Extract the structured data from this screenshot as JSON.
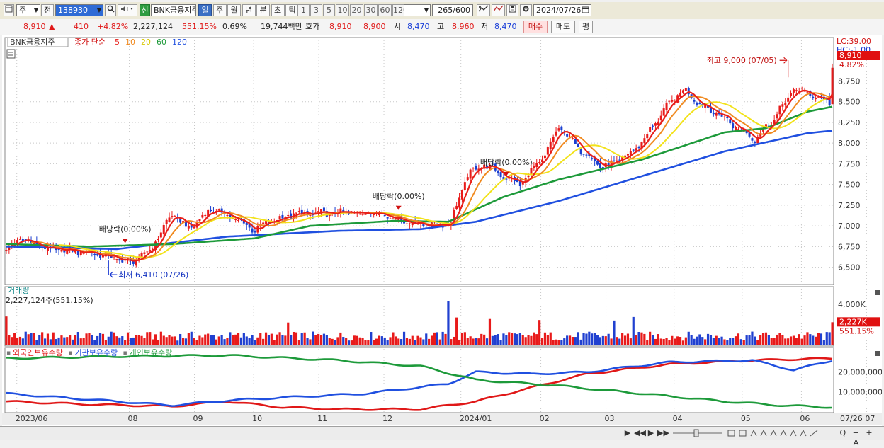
{
  "toolbar": {
    "period_select": "주",
    "prev_label": "전",
    "stock_code": "138930",
    "stock_name": "BNK금융지주",
    "credit_badge": "신",
    "tabs": [
      "일",
      "주",
      "월",
      "년",
      "분",
      "초",
      "틱"
    ],
    "active_tab": "일",
    "nums": [
      "1",
      "3",
      "5",
      "10",
      "20",
      "30",
      "60",
      "120"
    ],
    "count": "265",
    "count_total": "/600",
    "date": "2024/07/26"
  },
  "quote": {
    "price": "8,910",
    "arrow": "▲",
    "change": "410",
    "change_pct": "+4.82%",
    "volume": "2,227,124",
    "vol_ratio": "551.15%",
    "turnover": "0.69%",
    "amount": "19,744백만",
    "hoga_label": "호가",
    "ask": "8,910",
    "bid": "8,900",
    "open_label": "시",
    "open": "8,470",
    "high_label": "고",
    "high": "8,960",
    "low_label": "저",
    "low": "8,470",
    "buy_label": "매수",
    "sell_label": "매도",
    "flat_label": "평"
  },
  "bottom": {
    "right_controls": "Q − + A"
  },
  "chart_data": [
    {
      "type": "candlestick",
      "name": "price",
      "legend": {
        "stock": "BNK금융지주",
        "indicator": "종가 단순",
        "ma": [
          "5",
          "10",
          "20",
          "60",
          "120"
        ]
      },
      "ma_colors": {
        "5": "#e8201a",
        "10": "#f08a20",
        "20": "#f2e21a",
        "60": "#1d9a3a",
        "120": "#2050e0"
      },
      "up_color": "#e81a1a",
      "down_color": "#1a3fd0",
      "ylim": [
        6300,
        9250
      ],
      "yticks": [
        6500,
        6750,
        7000,
        7250,
        7500,
        7750,
        8000,
        8250,
        8500,
        8750
      ],
      "ytick_labels": [
        "6,500",
        "6,750",
        "7,000",
        "7,250",
        "7,500",
        "7,750",
        "8,000",
        "8,250",
        "8,500",
        "8,750"
      ],
      "scale_text": [
        "LC:39.00",
        "HC:-1.00"
      ],
      "last_price_label": "8,910",
      "last_price_pct": "4.82%",
      "last_price": 8910,
      "x_labels": [
        "2023/06",
        "08",
        "09",
        "10",
        "11",
        "12",
        "2024/01",
        "02",
        "03",
        "04",
        "05",
        "06",
        "07"
      ],
      "x_label_positions": [
        4,
        42,
        64,
        84,
        106,
        128,
        154,
        181,
        203,
        226,
        249,
        269,
        291
      ],
      "n_bars": 300,
      "anchors": [
        [
          0,
          6700
        ],
        [
          5,
          6850
        ],
        [
          15,
          6720
        ],
        [
          30,
          6680
        ],
        [
          38,
          6620
        ],
        [
          45,
          6560
        ],
        [
          52,
          6700
        ],
        [
          60,
          7150
        ],
        [
          66,
          6960
        ],
        [
          74,
          7200
        ],
        [
          82,
          7100
        ],
        [
          90,
          6950
        ],
        [
          95,
          7050
        ],
        [
          104,
          7140
        ],
        [
          115,
          7150
        ],
        [
          125,
          7160
        ],
        [
          135,
          7160
        ],
        [
          145,
          7050
        ],
        [
          154,
          7000
        ],
        [
          161,
          7050
        ],
        [
          167,
          7620
        ],
        [
          173,
          7750
        ],
        [
          180,
          7600
        ],
        [
          186,
          7500
        ],
        [
          195,
          7850
        ],
        [
          200,
          8200
        ],
        [
          207,
          7950
        ],
        [
          216,
          7700
        ],
        [
          225,
          7850
        ],
        [
          231,
          8050
        ],
        [
          238,
          8400
        ],
        [
          245,
          8650
        ],
        [
          252,
          8450
        ],
        [
          258,
          8350
        ],
        [
          266,
          8150
        ],
        [
          271,
          8050
        ],
        [
          278,
          8300
        ],
        [
          285,
          8650
        ],
        [
          290,
          8600
        ],
        [
          298,
          8500
        ],
        [
          299,
          8910
        ]
      ],
      "ma120_anchors": [
        [
          0,
          6750
        ],
        [
          40,
          6720
        ],
        [
          80,
          6870
        ],
        [
          120,
          6940
        ],
        [
          150,
          6960
        ],
        [
          170,
          7050
        ],
        [
          200,
          7300
        ],
        [
          230,
          7600
        ],
        [
          260,
          7900
        ],
        [
          290,
          8120
        ],
        [
          299,
          8150
        ]
      ],
      "ma60_anchors": [
        [
          0,
          6780
        ],
        [
          30,
          6750
        ],
        [
          60,
          6780
        ],
        [
          90,
          6850
        ],
        [
          110,
          7000
        ],
        [
          140,
          7060
        ],
        [
          160,
          7050
        ],
        [
          180,
          7350
        ],
        [
          200,
          7560
        ],
        [
          230,
          7800
        ],
        [
          260,
          8130
        ],
        [
          275,
          8180
        ],
        [
          290,
          8380
        ],
        [
          299,
          8440
        ]
      ],
      "annotations": [
        {
          "text": "최고 9,000 (07/05)",
          "bar": 283,
          "value": 9000,
          "side": "left"
        },
        {
          "text": "최저 6,410 (07/26)",
          "bar": 37,
          "value": 6410,
          "side": "right"
        },
        {
          "text": "배당락(0.00%)",
          "bar": 43,
          "value": 6740,
          "side": "marker"
        },
        {
          "text": "배당락(0.00%)",
          "bar": 142,
          "value": 7140,
          "side": "marker"
        },
        {
          "text": "배당락(0.00%)",
          "bar": 181,
          "value": 7550,
          "side": "marker"
        }
      ]
    },
    {
      "type": "bar",
      "name": "volume",
      "title": "거래량",
      "current_text": "2,227,124주(551.15%)",
      "ylim": [
        0,
        4500
      ],
      "yticks": [
        4000
      ],
      "ytick_labels": [
        "4,000K"
      ],
      "last_label": "2,227K",
      "last_pct": "551.15%",
      "unit": "K",
      "last_value": 2227,
      "peak_values": [
        [
          0,
          2800
        ],
        [
          102,
          2200
        ],
        [
          160,
          4300
        ],
        [
          163,
          2700
        ],
        [
          175,
          2550
        ],
        [
          193,
          2450
        ],
        [
          220,
          2400
        ],
        [
          227,
          2750
        ],
        [
          295,
          1100
        ],
        [
          299,
          2227
        ]
      ]
    },
    {
      "type": "line",
      "name": "holdings",
      "legend": [
        "외국인보유수량",
        "기관보유수량",
        "개인보유수량"
      ],
      "series_colors": [
        "#e01818",
        "#2050e0",
        "#1d9a3a"
      ],
      "ylim": [
        0,
        30000000
      ],
      "yticks": [
        10000000,
        20000000
      ],
      "ytick_labels": [
        "10,000,000",
        "20,000,000"
      ],
      "series": [
        {
          "name": "외국인보유수량",
          "anchors": [
            [
              0,
              5000000
            ],
            [
              30,
              3500000
            ],
            [
              60,
              2500000
            ],
            [
              80,
              5000000
            ],
            [
              100,
              2000000
            ],
            [
              120,
              1000000
            ],
            [
              150,
              1000000
            ],
            [
              170,
              5000000
            ],
            [
              190,
              12000000
            ],
            [
              210,
              19000000
            ],
            [
              240,
              24000000
            ],
            [
              270,
              26000000
            ],
            [
              299,
              27000000
            ]
          ]
        },
        {
          "name": "기관보유수량",
          "anchors": [
            [
              0,
              9000000
            ],
            [
              30,
              6000000
            ],
            [
              60,
              3000000
            ],
            [
              80,
              5500000
            ],
            [
              100,
              7000000
            ],
            [
              130,
              9000000
            ],
            [
              160,
              14000000
            ],
            [
              170,
              20000000
            ],
            [
              190,
              19000000
            ],
            [
              210,
              20000000
            ],
            [
              240,
              25000000
            ],
            [
              270,
              26000000
            ],
            [
              285,
              21000000
            ],
            [
              299,
              26000000
            ]
          ]
        },
        {
          "name": "개인보유수량",
          "anchors": [
            [
              0,
              27000000
            ],
            [
              40,
              28000000
            ],
            [
              80,
              28500000
            ],
            [
              120,
              26000000
            ],
            [
              150,
              23000000
            ],
            [
              170,
              16000000
            ],
            [
              200,
              13000000
            ],
            [
              230,
              9000000
            ],
            [
              260,
              5000000
            ],
            [
              280,
              3000000
            ],
            [
              299,
              2000000
            ]
          ]
        }
      ]
    }
  ]
}
